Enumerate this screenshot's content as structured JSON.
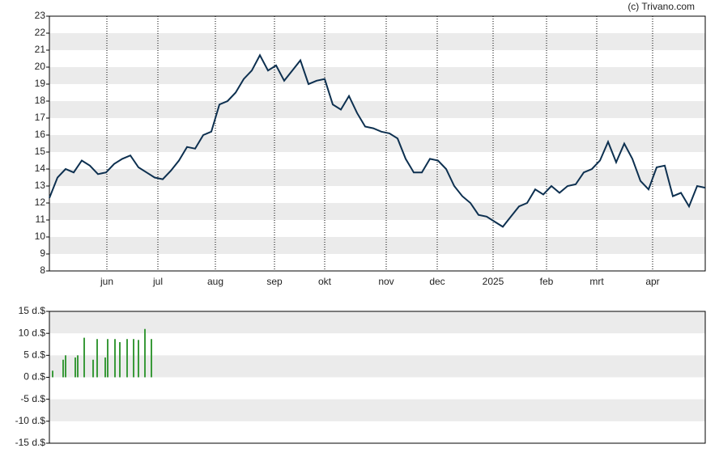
{
  "source": "(c) Trivano.com",
  "chart_data": [
    {
      "type": "line",
      "xlim": [
        0,
        81
      ],
      "xticks": [
        {
          "value": 7.1,
          "label": "jun"
        },
        {
          "value": 13.4,
          "label": "jul"
        },
        {
          "value": 20.5,
          "label": "aug"
        },
        {
          "value": 27.8,
          "label": "sep"
        },
        {
          "value": 34,
          "label": "okt"
        },
        {
          "value": 41.6,
          "label": "nov"
        },
        {
          "value": 47.9,
          "label": "dec"
        },
        {
          "value": 54.8,
          "label": "2025"
        },
        {
          "value": 61.4,
          "label": "feb"
        },
        {
          "value": 67.6,
          "label": "mrt"
        },
        {
          "value": 74.5,
          "label": "apr"
        }
      ],
      "ylim": [
        8,
        23
      ],
      "yticks": [
        8,
        9,
        10,
        11,
        12,
        13,
        14,
        15,
        16,
        17,
        18,
        19,
        20,
        21,
        22,
        23
      ],
      "grid": true,
      "series": [
        {
          "color": "#0d3050",
          "values": [
            12.3,
            13.5,
            14.0,
            13.8,
            14.5,
            14.2,
            13.7,
            13.8,
            14.3,
            14.6,
            14.8,
            14.1,
            13.8,
            13.5,
            13.4,
            13.9,
            14.5,
            15.3,
            15.2,
            16.0,
            16.2,
            17.8,
            18.0,
            18.5,
            19.3,
            19.8,
            20.7,
            19.8,
            20.1,
            19.2,
            19.8,
            20.4,
            19.0,
            19.2,
            19.3,
            17.8,
            17.5,
            18.3,
            17.3,
            16.5,
            16.4,
            16.2,
            16.1,
            15.8,
            14.6,
            13.8,
            13.8,
            14.6,
            14.5,
            14.0,
            13.0,
            12.4,
            12.0,
            11.3,
            11.2,
            10.9,
            10.6,
            11.2,
            11.8,
            12.0,
            12.8,
            12.5,
            13.0,
            12.6,
            13.0,
            13.1,
            13.8,
            14.0,
            14.5,
            15.6,
            14.4,
            15.5,
            14.6,
            13.3,
            12.8,
            14.1,
            14.2,
            12.4,
            12.6,
            11.8,
            13.0,
            12.9
          ]
        }
      ]
    },
    {
      "type": "bar",
      "xlim": [
        0,
        81
      ],
      "ylim": [
        -15,
        15
      ],
      "yticks": [
        {
          "value": -15,
          "label": "-15 d.$"
        },
        {
          "value": -10,
          "label": "-10 d.$"
        },
        {
          "value": -5,
          "label": "-5 d.$"
        },
        {
          "value": 0,
          "label": "0 d.$"
        },
        {
          "value": 5,
          "label": "5 d.$"
        },
        {
          "value": 10,
          "label": "10 d.$"
        },
        {
          "value": 15,
          "label": "15 d.$"
        }
      ],
      "grid": true,
      "color": "#3a9a3a",
      "x": [
        0.4,
        1.7,
        2.0,
        3.2,
        3.5,
        4.3,
        5.4,
        5.9,
        6.9,
        7.2,
        8.1,
        8.7,
        9.6,
        10.4,
        11.0,
        11.8,
        12.6
      ],
      "values": [
        1.5,
        4,
        5,
        4.5,
        5,
        9,
        4,
        8.7,
        4.5,
        8.7,
        8.7,
        8,
        8.7,
        8.7,
        8.5,
        11,
        8.7
      ]
    }
  ]
}
